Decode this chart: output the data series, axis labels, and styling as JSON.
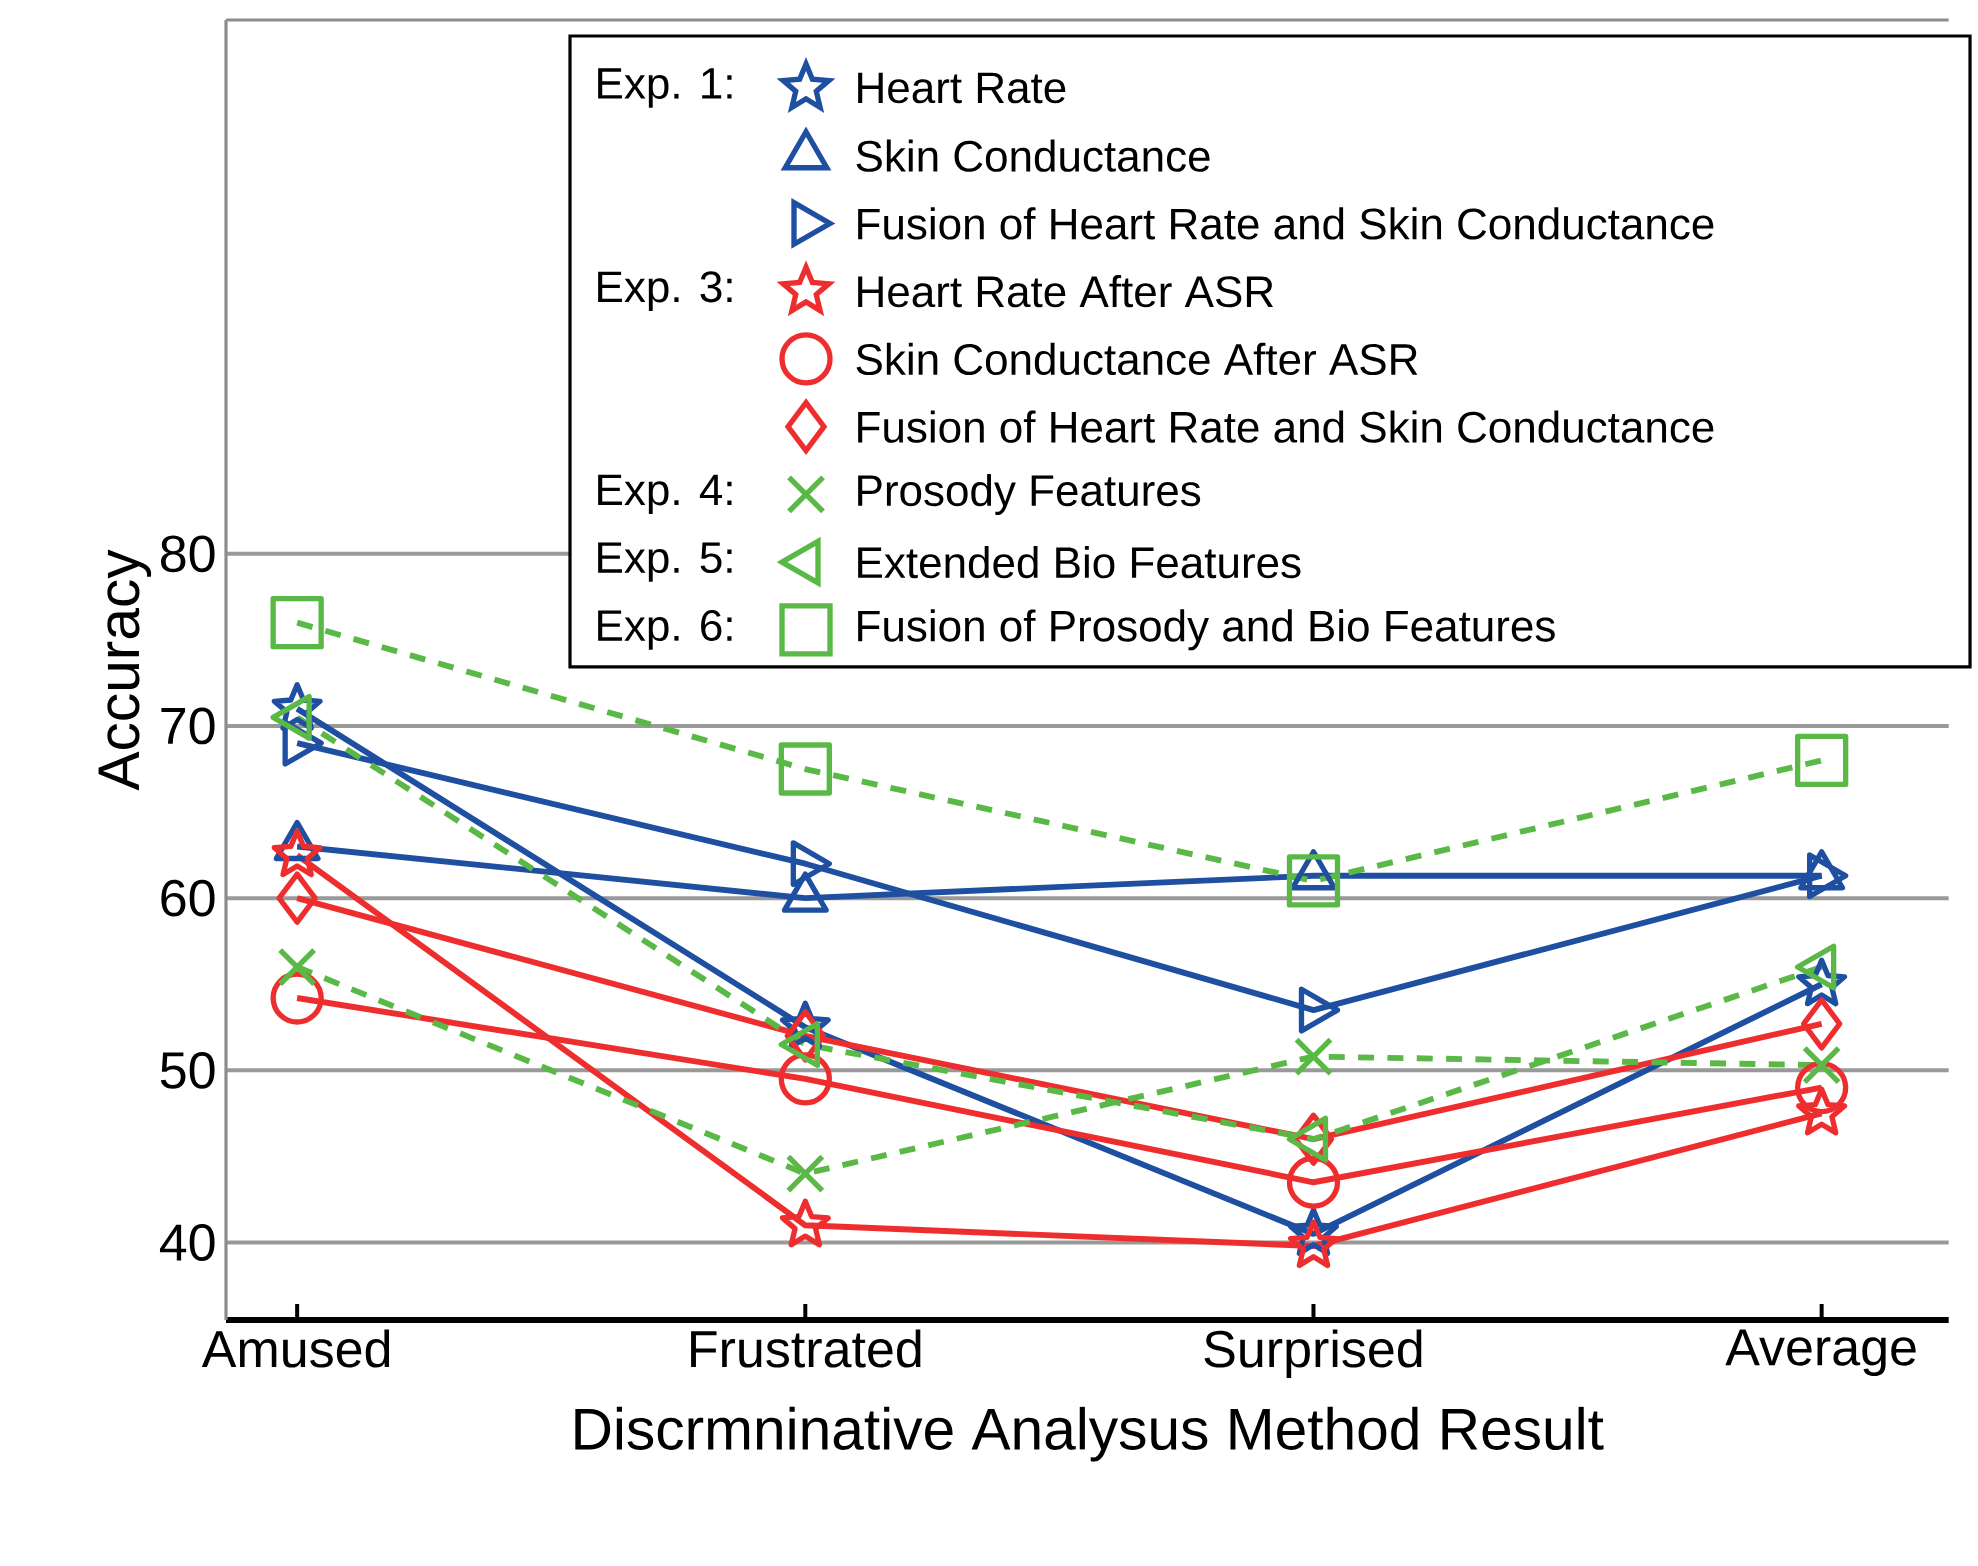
{
  "chart_data": {
    "type": "line",
    "xlabel": "Discrmninative Analysus Method Result",
    "ylabel": "Accuracy",
    "categories": [
      "Amused",
      "Frustrated",
      "Surprised",
      "Average"
    ],
    "ylim": [
      35.5,
      111
    ],
    "yticks": [
      40,
      50,
      60,
      70,
      80
    ],
    "grid": "y",
    "legend": "top right",
    "annotations": [
      "Exp. 1:",
      "Exp. 3:",
      "Exp. 4:",
      "Exp. 5:",
      "Exp. 6:"
    ],
    "series": [
      {
        "name": "Heart Rate",
        "color": "#1f4fa0",
        "marker": "star",
        "line_style": "solid",
        "values": [
          71,
          52.5,
          40.5,
          55
        ]
      },
      {
        "name": "Skin Conductance",
        "color": "#1f4fa0",
        "marker": "triangle",
        "line_style": "solid",
        "values": [
          63,
          60,
          61.3,
          61.3
        ]
      },
      {
        "name": "Fusion of Heart Rate and Skin Conductance",
        "color": "#1f4fa0",
        "marker": "triangle-right",
        "line_style": "solid",
        "values": [
          69,
          62,
          53.5,
          61.3
        ]
      },
      {
        "name": "Heart Rate After ASR",
        "color": "#ee2e2e",
        "marker": "star",
        "line_style": "solid",
        "values": [
          62.5,
          41,
          39.8,
          47.5
        ]
      },
      {
        "name": "Skin Conductance After ASR",
        "color": "#ee2e2e",
        "marker": "circle",
        "line_style": "solid",
        "values": [
          54.2,
          49.5,
          43.5,
          49
        ]
      },
      {
        "name": "Fusion of Heart Rate and Skin Conductance",
        "color": "#ee2e2e",
        "marker": "diamond",
        "line_style": "solid",
        "values": [
          60,
          52,
          46,
          52.7
        ]
      },
      {
        "name": "Prosody Features",
        "color": "#5ab946",
        "marker": "cross",
        "line_style": "dashed",
        "values": [
          56,
          44,
          50.8,
          50.3
        ]
      },
      {
        "name": "Extended Bio Features",
        "color": "#5ab946",
        "marker": "triangle-left",
        "line_style": "dashed",
        "values": [
          70.5,
          51.5,
          46,
          56
        ]
      },
      {
        "name": "Fusion of Prosody and Bio Features",
        "color": "#5ab946",
        "marker": "square",
        "line_style": "dashed",
        "values": [
          76,
          67.5,
          61,
          68
        ]
      }
    ]
  }
}
